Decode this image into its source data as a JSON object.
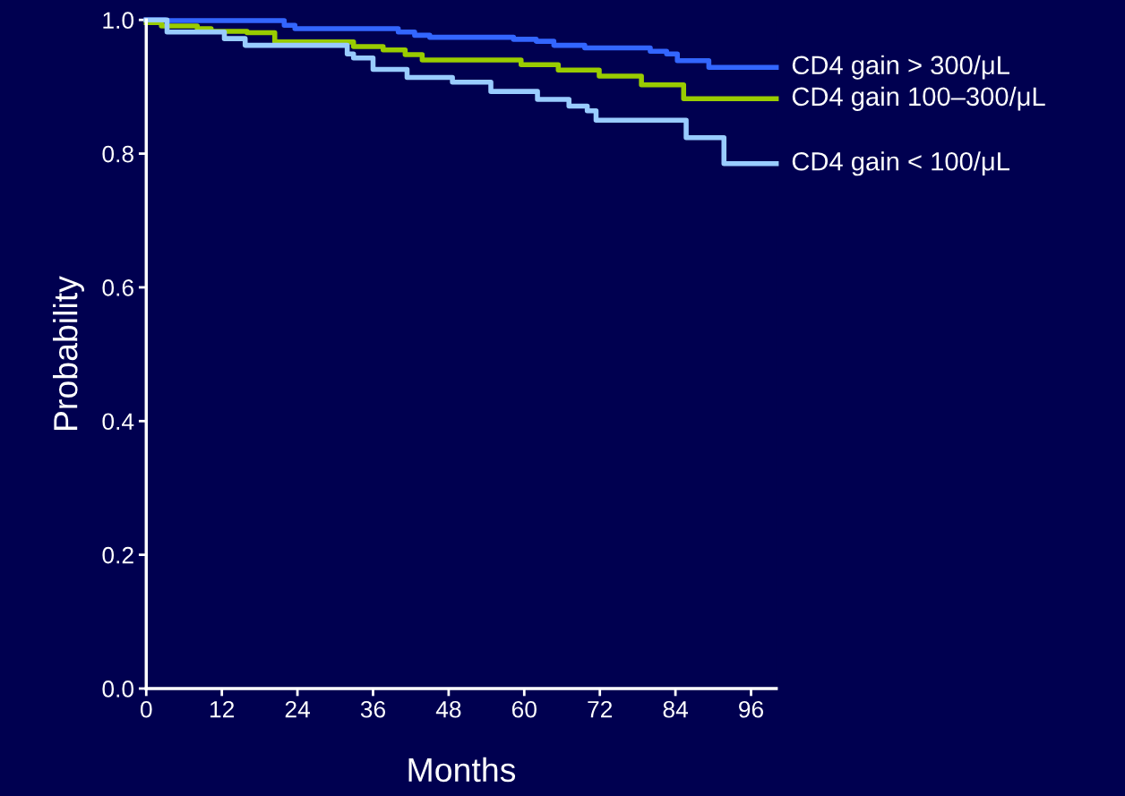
{
  "chart_data": {
    "type": "step",
    "xlabel": "Months",
    "ylabel": "Probability",
    "xlim": [
      0,
      100
    ],
    "xticks": [
      0,
      12,
      24,
      36,
      48,
      60,
      72,
      84,
      96
    ],
    "ylim": [
      0,
      1
    ],
    "yticks": [
      {
        "value": 0,
        "label": "0.0"
      },
      0.2,
      0.4,
      0.6,
      0.8,
      {
        "value": 1,
        "label": "1.0"
      }
    ],
    "grid": false,
    "legend": false,
    "marker": "none",
    "line_style": "solid",
    "series": [
      {
        "name": "CD4 gain > 300/μL",
        "color": "#3366ff",
        "x": [
          0,
          3,
          21.9,
          23.6,
          40,
          42.6,
          45,
          58.3,
          61.9,
          64.7,
          69.6,
          80,
          82.6,
          84.3,
          89.3,
          100
        ],
        "values": [
          1.0,
          0.999,
          0.992,
          0.987,
          0.982,
          0.977,
          0.974,
          0.971,
          0.968,
          0.962,
          0.958,
          0.953,
          0.949,
          0.939,
          0.929,
          0.929
        ]
      },
      {
        "name": "CD4 gain 100–300/μL",
        "color": "#99cc00",
        "x": [
          0,
          2.4,
          8.1,
          10.3,
          16,
          20.4,
          32.9,
          37.6,
          41.1,
          43.8,
          59.5,
          65.4,
          71.9,
          78.6,
          85.3,
          100
        ],
        "values": [
          0.996,
          0.991,
          0.987,
          0.983,
          0.981,
          0.967,
          0.96,
          0.955,
          0.948,
          0.94,
          0.933,
          0.925,
          0.916,
          0.903,
          0.882,
          0.882
        ]
      },
      {
        "name": "CD4 gain < 100/μL",
        "color": "#99ccff",
        "x": [
          0,
          3.3,
          12.4,
          15.7,
          31.9,
          32.9,
          36,
          41.4,
          48.6,
          54.7,
          62.1,
          67.1,
          70,
          71.4,
          85.7,
          91.7,
          100
        ],
        "values": [
          1.0,
          0.982,
          0.972,
          0.962,
          0.949,
          0.943,
          0.926,
          0.914,
          0.907,
          0.893,
          0.881,
          0.871,
          0.864,
          0.85,
          0.824,
          0.785,
          0.785
        ]
      }
    ]
  }
}
